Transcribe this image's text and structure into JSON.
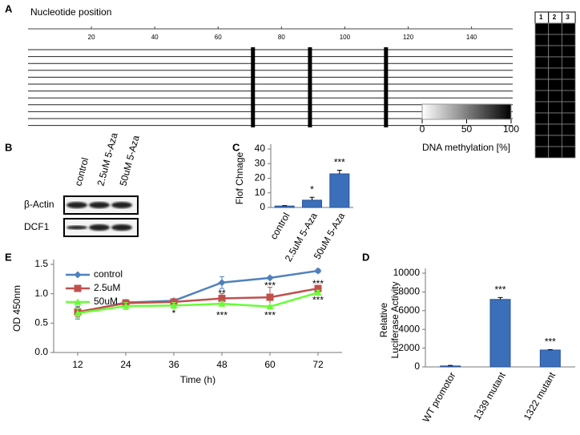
{
  "panel_labels": [
    "A",
    "B",
    "C",
    "D",
    "E"
  ],
  "panel_a": {
    "title": "Nucleotide position",
    "xlim": [
      0,
      153
    ],
    "xticks": [
      20,
      40,
      60,
      80,
      100,
      120,
      140
    ],
    "sites": [
      71,
      89,
      113
    ],
    "grid_headers": [
      "1",
      "2",
      "3"
    ],
    "methylation": [
      [
        100,
        100,
        100
      ],
      [
        100,
        100,
        100
      ],
      [
        100,
        100,
        100
      ],
      [
        100,
        100,
        100
      ],
      [
        100,
        100,
        100
      ],
      [
        100,
        100,
        100
      ],
      [
        100,
        100,
        100
      ],
      [
        100,
        100,
        100
      ],
      [
        100,
        100,
        100
      ],
      [
        100,
        100,
        100
      ],
      [
        100,
        100,
        100
      ],
      [
        100,
        100,
        100
      ]
    ],
    "scale": {
      "lim": [
        0,
        100
      ],
      "ticks": [
        0,
        50,
        100
      ],
      "label": "DNA methylation [%]"
    }
  },
  "panel_b": {
    "treatments": [
      "control",
      "2.5uM 5-Aza",
      "50uM 5-Aza"
    ],
    "rows": [
      "β-Actin",
      "DCF1"
    ]
  },
  "chart_data": [
    {
      "type": "bar",
      "ylabel": "Flof Chnage",
      "categories": [
        "control",
        "2.5uM 5-Aza",
        "50uM 5-Aza"
      ],
      "values": [
        1,
        5,
        23
      ],
      "errors": [
        0.3,
        2,
        2.5
      ],
      "annotations": [
        null,
        "*",
        "***"
      ],
      "color": "#3b6fba",
      "ylim": [
        0,
        40
      ],
      "yticks": [
        0,
        10,
        20,
        30,
        40
      ]
    },
    {
      "type": "line",
      "xlabel": "Time (h)",
      "ylabel": "OD 450nm",
      "x": [
        12,
        24,
        36,
        48,
        60,
        72
      ],
      "xlim": [
        6,
        78
      ],
      "xticks": [
        12,
        24,
        36,
        48,
        60,
        72
      ],
      "ylim": [
        0,
        1.5
      ],
      "yticks": [
        {
          "value": 0,
          "label": "0.0"
        },
        {
          "value": 0.5,
          "label": "0.5"
        },
        {
          "value": 1,
          "label": "1.0"
        },
        {
          "value": 1.5,
          "label": "1.5"
        }
      ],
      "legend": "upper left",
      "series": [
        {
          "name": "control",
          "color": "#4f81bd",
          "marker": "diamond",
          "values": [
            0.68,
            0.85,
            0.88,
            1.19,
            1.27,
            1.39
          ],
          "errors": [
            0.11,
            0.05,
            0.03,
            0.1,
            0.02,
            0.03
          ]
        },
        {
          "name": "2.5uM",
          "color": "#c0504d",
          "marker": "square",
          "values": [
            0.69,
            0.84,
            0.86,
            0.92,
            0.94,
            1.09
          ],
          "errors": [
            0.08,
            0.05,
            0.04,
            0.08,
            0.17,
            0.04
          ]
        },
        {
          "name": "50uM",
          "color": "#66ff33",
          "marker": "triangle",
          "values": [
            0.67,
            0.79,
            0.8,
            0.83,
            0.78,
            1.02
          ],
          "errors": [
            0.08,
            0.06,
            0.05,
            0.04,
            0.02,
            0.04
          ]
        }
      ],
      "annotations": [
        {
          "x": 36,
          "y": 0.66,
          "text": "*"
        },
        {
          "x": 48,
          "y": 1.0,
          "text": "**"
        },
        {
          "x": 48,
          "y": 0.62,
          "text": "***"
        },
        {
          "x": 60,
          "y": 1.13,
          "text": "***"
        },
        {
          "x": 60,
          "y": 0.62,
          "text": "***"
        },
        {
          "x": 72,
          "y": 1.16,
          "text": "***"
        },
        {
          "x": 72,
          "y": 0.88,
          "text": "***"
        }
      ]
    },
    {
      "type": "bar",
      "ylabel": [
        "Relative",
        "Luciferase Activity"
      ],
      "categories": [
        "WT promotor",
        "1339 mutant",
        "1322 mutant"
      ],
      "values": [
        100,
        7200,
        1800
      ],
      "errors": [
        60,
        200,
        40
      ],
      "annotations": [
        null,
        "***",
        "***"
      ],
      "color": "#3b6fba",
      "ylim": [
        0,
        10000
      ],
      "yticks": [
        0,
        2000,
        4000,
        6000,
        8000,
        10000
      ]
    }
  ]
}
